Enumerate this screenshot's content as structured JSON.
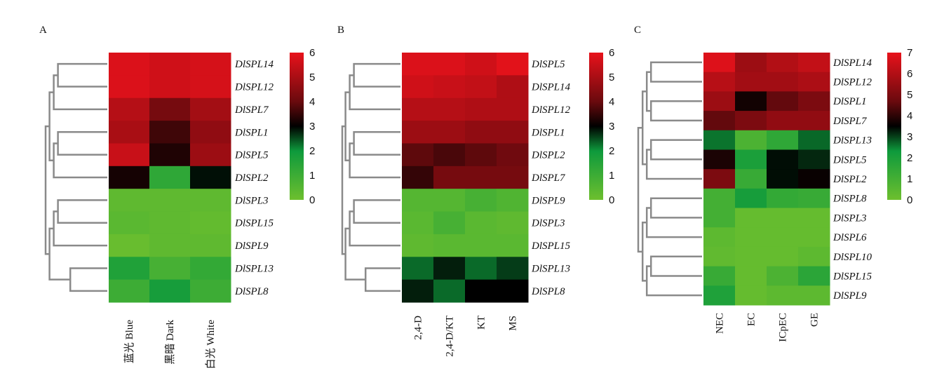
{
  "colors": {
    "low": "#6dbf2e",
    "mid": "#000000",
    "high": "#e8121b",
    "dendrogram": "#8a8a8a"
  },
  "chart_data": [
    {
      "type": "heatmap",
      "panel_label": "A",
      "rows": [
        "DlSPL14",
        "DlSPL12",
        "DlSPL7",
        "DlSPL1",
        "DlSPL5",
        "DlSPL2",
        "DlSPL3",
        "DlSPL15",
        "DlSPL9",
        "DlSPL13",
        "DlSPL8"
      ],
      "columns": [
        "蓝光 Blue",
        "黑暗 Dark",
        "白光 White"
      ],
      "values": [
        [
          5.8,
          5.6,
          5.7
        ],
        [
          5.8,
          5.6,
          5.7
        ],
        [
          5.2,
          4.2,
          4.9
        ],
        [
          5.0,
          3.6,
          4.6
        ],
        [
          5.5,
          3.3,
          4.8
        ],
        [
          3.2,
          1.3,
          2.9
        ],
        [
          0.3,
          0.3,
          0.3
        ],
        [
          0.4,
          0.3,
          0.2
        ],
        [
          0.1,
          0.3,
          0.3
        ],
        [
          1.6,
          0.8,
          1.2
        ],
        [
          1.0,
          1.8,
          1.0
        ]
      ],
      "colorbar": {
        "min": 0,
        "max": 6,
        "ticks": [
          "0",
          "1",
          "2",
          "3",
          "4",
          "5",
          "6"
        ]
      },
      "row_order_dendrogram_groups": [
        [
          0,
          1,
          2,
          3,
          4,
          5
        ],
        [
          6,
          7,
          8,
          9,
          10
        ]
      ]
    },
    {
      "type": "heatmap",
      "panel_label": "B",
      "rows": [
        "DlSPL5",
        "DlSPL14",
        "DlSPL12",
        "DlSPL1",
        "DlSPL2",
        "DlSPL7",
        "DlSPL9",
        "DlSPL3",
        "DlSPL15",
        "DlSPL13",
        "DlSPL8"
      ],
      "columns": [
        "2,4-D",
        "2,4-D/KT",
        "KT",
        "MS"
      ],
      "values": [
        [
          5.8,
          5.8,
          5.6,
          5.9
        ],
        [
          5.6,
          5.5,
          5.4,
          5.1
        ],
        [
          5.2,
          5.2,
          5.1,
          5.1
        ],
        [
          4.8,
          4.8,
          4.6,
          4.6
        ],
        [
          3.9,
          3.7,
          3.9,
          4.1
        ],
        [
          3.5,
          4.2,
          4.2,
          4.2
        ],
        [
          0.5,
          0.5,
          0.8,
          0.6
        ],
        [
          0.4,
          0.8,
          0.4,
          0.3
        ],
        [
          0.3,
          0.4,
          0.4,
          0.4
        ],
        [
          2.3,
          2.8,
          2.3,
          2.6
        ],
        [
          2.8,
          2.3,
          3.0,
          3.0
        ]
      ],
      "colorbar": {
        "min": 0,
        "max": 6,
        "ticks": [
          "0",
          "1",
          "2",
          "3",
          "4",
          "5",
          "6"
        ]
      }
    },
    {
      "type": "heatmap",
      "panel_label": "C",
      "rows": [
        "DlSPL14",
        "DlSPL12",
        "DlSPL1",
        "DlSPL7",
        "DlSPL13",
        "DlSPL5",
        "DlSPL2",
        "DlSPL8",
        "DlSPL3",
        "DlSPL6",
        "DlSPL10",
        "DlSPL15",
        "DlSPL9"
      ],
      "columns": [
        "NEC",
        "EC",
        "ICpEC",
        "GE"
      ],
      "values": [
        [
          6.8,
          5.6,
          6.0,
          6.3
        ],
        [
          6.1,
          5.7,
          5.7,
          5.9
        ],
        [
          5.6,
          3.7,
          4.6,
          5.0
        ],
        [
          4.6,
          5.0,
          5.4,
          5.4
        ],
        [
          2.6,
          0.8,
          1.5,
          2.7
        ],
        [
          3.8,
          2.0,
          3.4,
          3.2
        ],
        [
          5.0,
          1.3,
          3.4,
          3.6
        ],
        [
          1.0,
          2.1,
          1.4,
          1.3
        ],
        [
          1.0,
          0.2,
          0.2,
          0.2
        ],
        [
          0.4,
          0.2,
          0.2,
          0.2
        ],
        [
          0.3,
          0.2,
          0.2,
          0.4
        ],
        [
          1.3,
          0.2,
          0.8,
          1.6
        ],
        [
          1.9,
          0.2,
          0.4,
          0.4
        ]
      ],
      "colorbar": {
        "min": 0,
        "max": 7,
        "ticks": [
          "0",
          "1",
          "2",
          "3",
          "4",
          "5",
          "6",
          "7"
        ]
      }
    }
  ]
}
